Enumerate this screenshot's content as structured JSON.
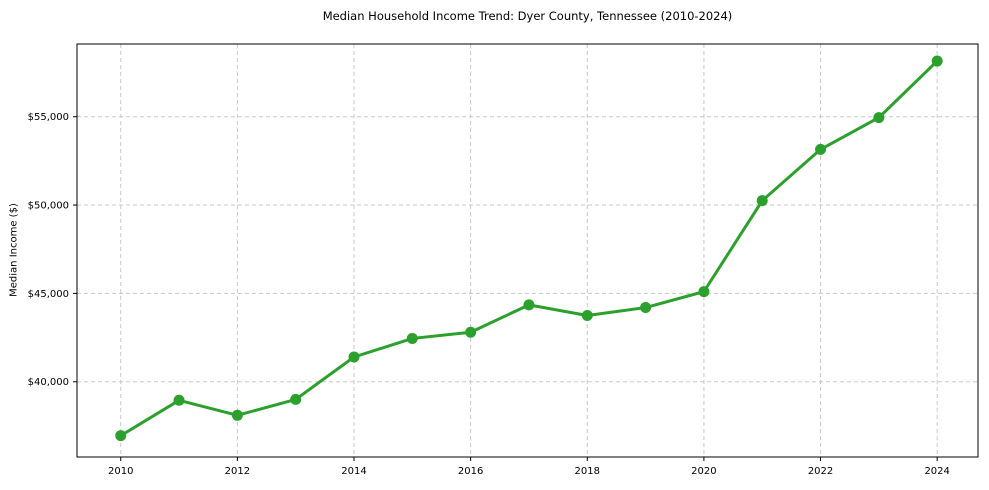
{
  "figure": {
    "title": "Median Household Income Trend: Dyer County, Tennessee (2010-2024)"
  },
  "chart_data": {
    "type": "line",
    "title": "Median Household Income Trend: Dyer County, Tennessee (2010-2024)",
    "xlabel": "",
    "ylabel": "Median Income ($)",
    "x": [
      2010,
      2011,
      2012,
      2013,
      2014,
      2015,
      2016,
      2017,
      2018,
      2019,
      2020,
      2021,
      2022,
      2023,
      2024
    ],
    "series": [
      {
        "name": "Median household income",
        "values": [
          36950,
          38950,
          38100,
          39000,
          41400,
          42450,
          42800,
          44350,
          43750,
          44200,
          45100,
          50250,
          53150,
          54950,
          58150
        ]
      }
    ],
    "xticks": [
      {
        "value": 2010,
        "label": "2010"
      },
      {
        "value": 2012,
        "label": "2012"
      },
      {
        "value": 2014,
        "label": "2014"
      },
      {
        "value": 2016,
        "label": "2016"
      },
      {
        "value": 2018,
        "label": "2018"
      },
      {
        "value": 2020,
        "label": "2020"
      },
      {
        "value": 2022,
        "label": "2022"
      },
      {
        "value": 2024,
        "label": "2024"
      }
    ],
    "yticks": [
      {
        "value": 40000,
        "label": "$40,000"
      },
      {
        "value": 45000,
        "label": "$45,000"
      },
      {
        "value": 50000,
        "label": "$50,000"
      },
      {
        "value": 55000,
        "label": "$55,000"
      }
    ],
    "xlim": [
      2009.25,
      2024.7
    ],
    "ylim": [
      35740,
      59115
    ],
    "grid": true,
    "grid_style": "dashed",
    "legend_position": "none",
    "marker": "circle",
    "colors": {
      "line": "#2ca02c",
      "marker": "#2ca02c",
      "grid": "#c8c8c8",
      "spine": "#000000",
      "text": "#000000",
      "background": "#ffffff"
    }
  }
}
